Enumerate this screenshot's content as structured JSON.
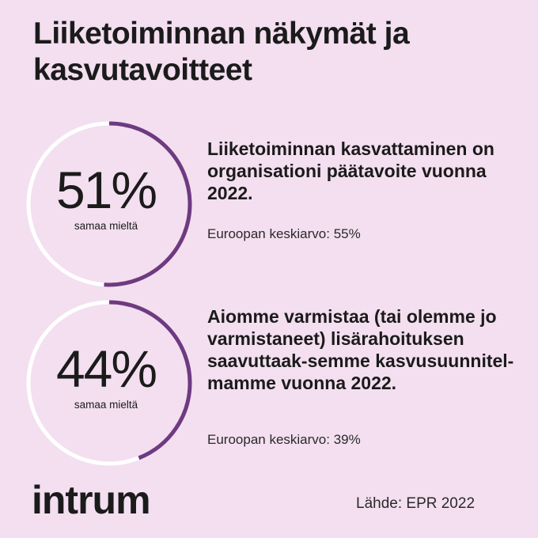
{
  "title": "Liiketoiminnan näkymät ja kasvutavoitteet",
  "colors": {
    "background": "#f3dff0",
    "ring_track": "#ffffff",
    "ring_fill": "#6e3a80"
  },
  "stats": [
    {
      "percent_label": "51%",
      "percent_value": 51,
      "sub_label": "samaa mieltä",
      "headline": "Liiketoiminnan kasvattaminen on organisationi päätavoite vuonna 2022.",
      "europe_avg": "Euroopan keskiarvo: 55%"
    },
    {
      "percent_label": "44%",
      "percent_value": 44,
      "sub_label": "samaa mieltä",
      "headline": "Aiomme varmistaa (tai olemme jo varmistaneet) lisärahoituksen saavuttaak-semme kasvusuunnitel-mamme vuonna 2022.",
      "europe_avg": "Euroopan keskiarvo: 39%"
    }
  ],
  "logo": "intrum",
  "source": "Lähde: EPR 2022"
}
